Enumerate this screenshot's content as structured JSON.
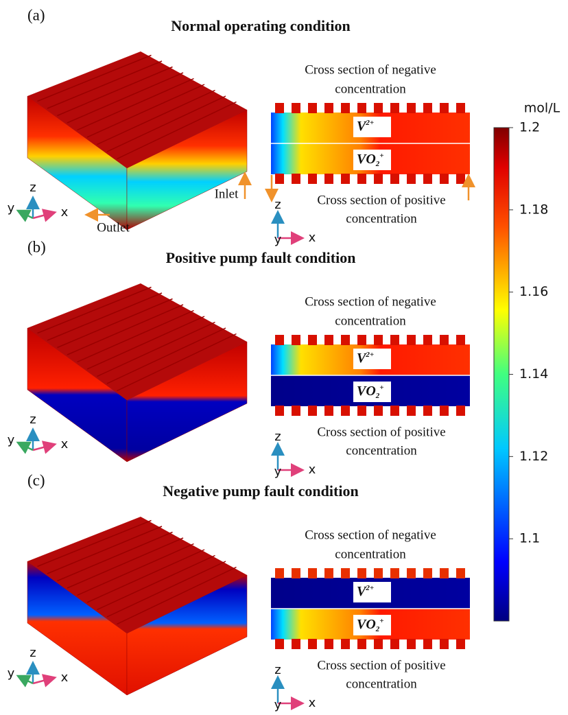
{
  "colorbar": {
    "unit": "mol/L",
    "range": [
      1.08,
      1.2
    ],
    "ticks": [
      1.2,
      1.18,
      1.16,
      1.14,
      1.12,
      1.1
    ]
  },
  "panels": [
    {
      "label": "(a)",
      "title": "Normal operating condition",
      "negative_caption": [
        "Cross section of negative",
        "concentration"
      ],
      "positive_caption": [
        "Cross section of positive",
        "concentration"
      ],
      "ion_negative": {
        "base": "V",
        "sup": "2+"
      },
      "ion_positive": {
        "base": "VO",
        "sub": "2",
        "sup": "+"
      },
      "axes_3d": {
        "x": "x",
        "y": "y",
        "z": "z"
      },
      "axes_section": {
        "x": "x",
        "y": "y",
        "z": "z"
      },
      "inlet": "Inlet",
      "outlet": "Outlet"
    },
    {
      "label": "(b)",
      "title": "Positive pump fault condition",
      "negative_caption": [
        "Cross section of negative",
        "concentration"
      ],
      "positive_caption": [
        "Cross section of positive",
        "concentration"
      ],
      "ion_negative": {
        "base": "V",
        "sup": "2+"
      },
      "ion_positive": {
        "base": "VO",
        "sub": "2",
        "sup": "+"
      },
      "axes_3d": {
        "x": "x",
        "y": "y",
        "z": "z"
      },
      "axes_section": {
        "x": "x",
        "y": "y",
        "z": "z"
      }
    },
    {
      "label": "(c)",
      "title": "Negative pump fault condition",
      "negative_caption": [
        "Cross section of negative",
        "concentration"
      ],
      "positive_caption": [
        "Cross section of positive",
        "concentration"
      ],
      "ion_negative": {
        "base": "V",
        "sup": "2+"
      },
      "ion_positive": {
        "base": "VO",
        "sub": "2",
        "sup": "+"
      },
      "axes_3d": {
        "x": "x",
        "y": "y",
        "z": "z"
      },
      "axes_section": {
        "x": "x",
        "y": "y",
        "z": "z"
      }
    }
  ]
}
